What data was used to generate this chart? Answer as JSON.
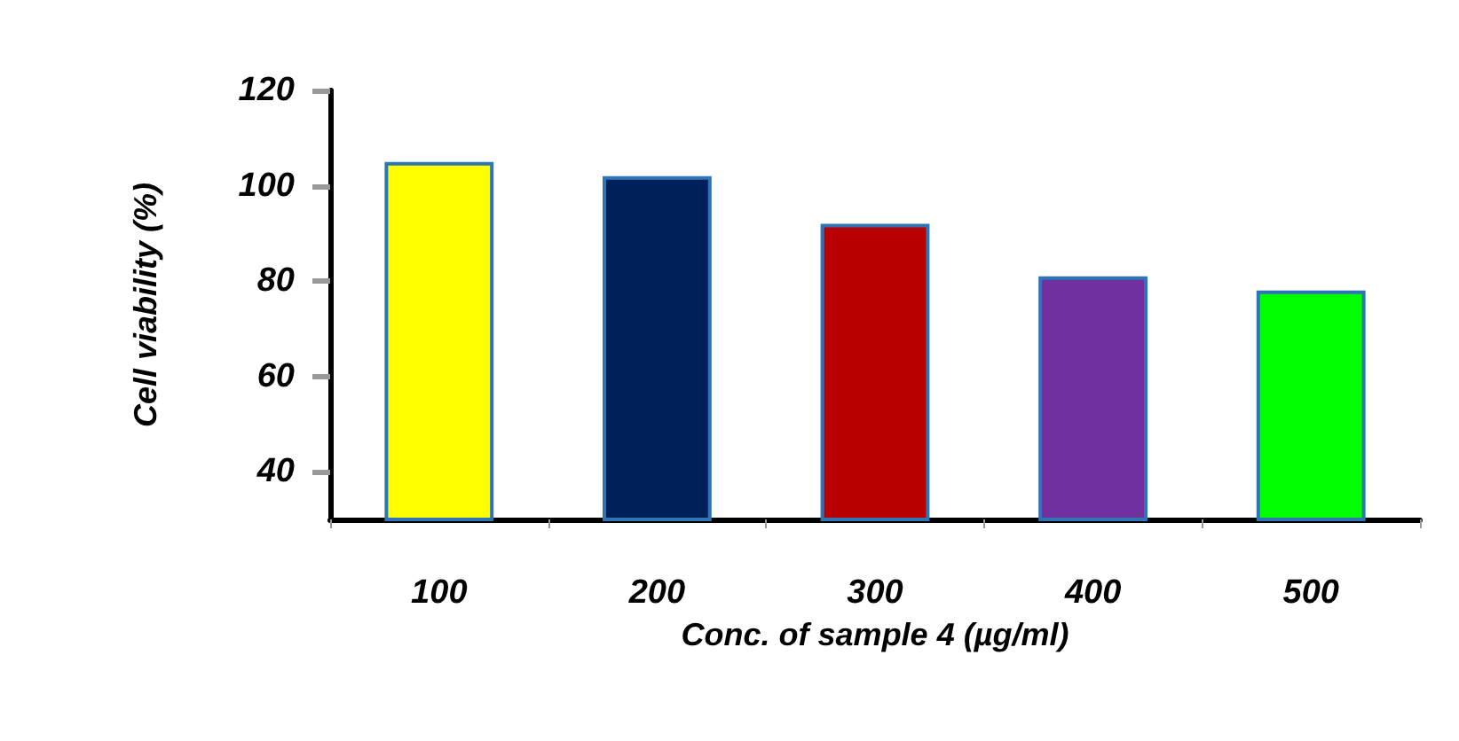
{
  "chart_data": {
    "type": "bar",
    "xlabel": "Conc. of sample 4 (µg/ml)",
    "ylabel": "Cell viability (%)",
    "categories": [
      "100",
      "200",
      "300",
      "400",
      "500"
    ],
    "values": [
      105,
      102,
      92,
      81,
      78
    ],
    "colors": [
      "#ffff00",
      "#00205b",
      "#b80000",
      "#7030a0",
      "#00ff00"
    ],
    "ylim": [
      30,
      120
    ],
    "yticks": [
      40,
      60,
      80,
      100,
      120
    ],
    "grid": false
  }
}
